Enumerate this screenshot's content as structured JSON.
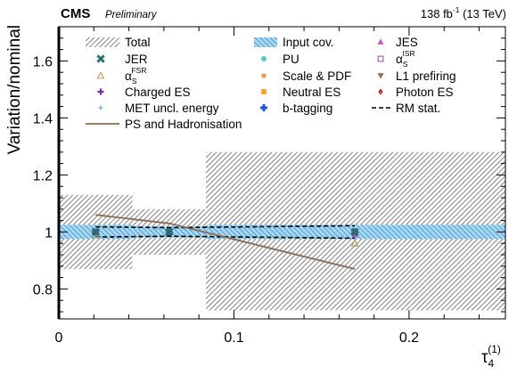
{
  "header": {
    "experiment": "CMS",
    "status": "Preliminary",
    "lumi": "138 fb",
    "lumi_exp": "-1",
    "energy": " (13 TeV)"
  },
  "chart_data": {
    "type": "bar",
    "ylabel": "Variation/nominal",
    "xlabel_base": "τ",
    "xlabel_sub": "4",
    "xlabel_sup": "(1)",
    "xlim": [
      0,
      0.255
    ],
    "ylim": [
      0.695,
      1.72
    ],
    "x_ticks": [
      "0",
      "0.1",
      "0.2"
    ],
    "x_tick_values": [
      0,
      0.1,
      0.2
    ],
    "y_ticks": [
      "0.8",
      "1",
      "1.2",
      "1.4",
      "1.6"
    ],
    "y_tick_values": [
      0.8,
      1.0,
      1.2,
      1.4,
      1.6
    ],
    "bin_edges": [
      0,
      0.042,
      0.084,
      0.255
    ],
    "bin_centers": [
      0.021,
      0.063,
      0.169
    ],
    "total_band": {
      "name": "Total",
      "color": "#999999",
      "low": [
        0.87,
        0.92,
        0.725
      ],
      "high": [
        1.13,
        1.08,
        1.28
      ]
    },
    "input_cov_band": {
      "name": "Input cov.",
      "color": "#3a93c9",
      "low": [
        0.975,
        0.98,
        0.975
      ],
      "high": [
        1.025,
        1.02,
        1.025
      ]
    },
    "rm_stat": {
      "name": "RM stat.",
      "low": [
        0.982,
        0.985,
        0.978
      ],
      "high": [
        1.018,
        1.015,
        1.022
      ]
    },
    "ps_hadronisation": {
      "name": "PS and Hadronisation",
      "color": "#8b6a55",
      "x": [
        0.021,
        0.063,
        0.169
      ],
      "y": [
        1.06,
        1.03,
        0.87
      ]
    },
    "series": [
      {
        "name": "JER",
        "marker": "x",
        "color": "#1f6f73",
        "values": [
          1.0,
          1.0,
          1.0
        ]
      },
      {
        "name": "FSR",
        "marker": "tri-open",
        "color": "#b39b55",
        "values": [
          0.99,
          1.0,
          0.96
        ]
      },
      {
        "name": "Charged ES",
        "marker": "plus",
        "color": "#7a2fa0",
        "values": [
          1.0,
          1.0,
          1.0
        ]
      },
      {
        "name": "MET uncl. energy",
        "marker": "plus-thin",
        "color": "#5f9fd8",
        "values": [
          1.0,
          1.0,
          1.0
        ]
      },
      {
        "name": "PU",
        "marker": "circle",
        "color": "#5ec7c9",
        "values": [
          1.0,
          1.0,
          1.0
        ]
      },
      {
        "name": "Scale & PDF",
        "marker": "star",
        "color": "#e8963a",
        "values": [
          1.0,
          1.0,
          1.0
        ]
      },
      {
        "name": "Neutral ES",
        "marker": "square",
        "color": "#f2a12a",
        "values": [
          1.0,
          1.0,
          1.0
        ]
      },
      {
        "name": "b-tagging",
        "marker": "cross-bold",
        "color": "#1457d0",
        "values": [
          1.0,
          1.0,
          1.0
        ]
      },
      {
        "name": "JES",
        "marker": "tri-up",
        "color": "#c558c8",
        "values": [
          1.0,
          1.0,
          0.99
        ]
      },
      {
        "name": "ISR",
        "marker": "square-open",
        "color": "#9e5aa8",
        "values": [
          1.0,
          1.0,
          1.0
        ]
      },
      {
        "name": "L1 prefiring",
        "marker": "tri-down",
        "color": "#9b6b55",
        "values": [
          1.0,
          1.0,
          1.0
        ]
      },
      {
        "name": "Photon ES",
        "marker": "diamond",
        "color": "#c0392b",
        "values": [
          1.0,
          1.0,
          1.0
        ]
      }
    ],
    "legend": {
      "placement": "top",
      "alpha_symbol": "α",
      "alpha_sub": "S",
      "fsr_sup": "FSR",
      "isr_sup": "ISR"
    }
  }
}
